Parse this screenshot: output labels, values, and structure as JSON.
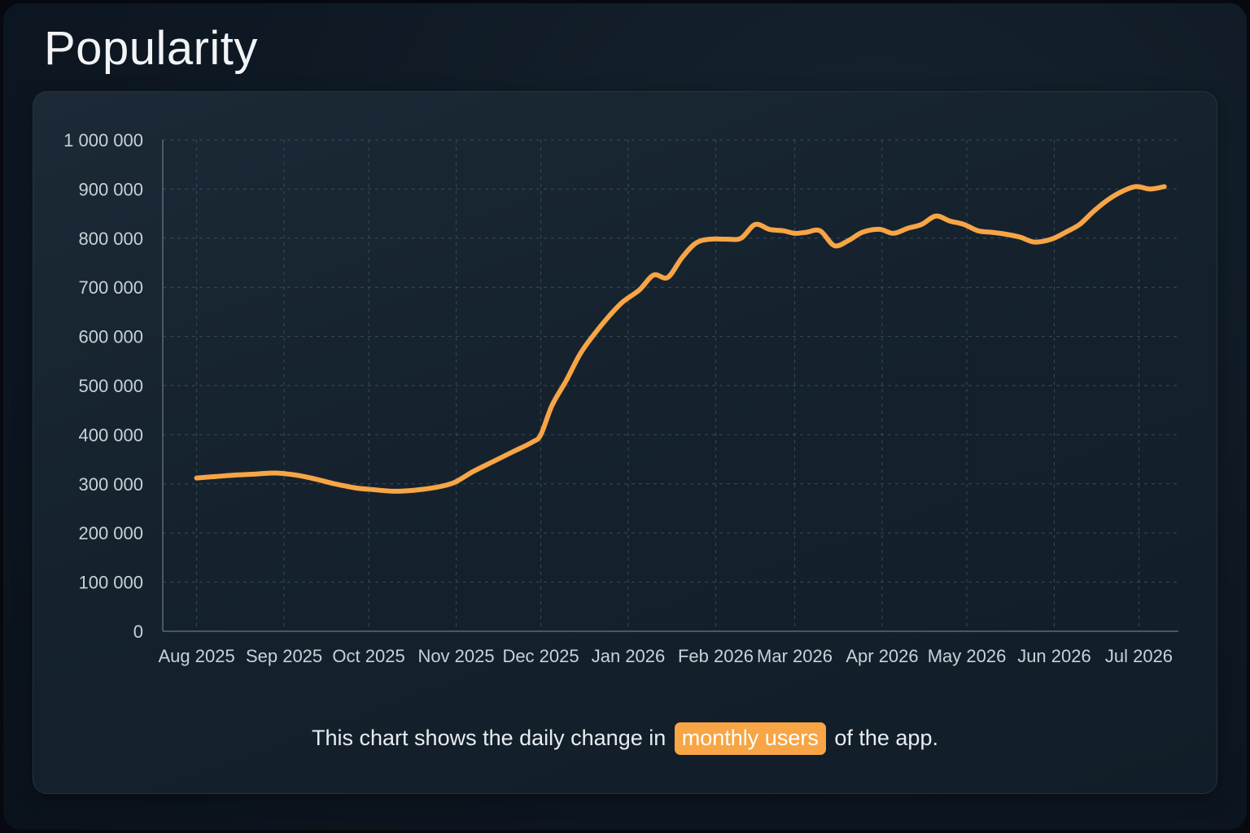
{
  "title": "Popularity",
  "caption": {
    "before": "This chart shows the daily change in",
    "highlight": "monthly users",
    "after": "of the app."
  },
  "colors": {
    "line": "#f7a545",
    "highlight_bg": "#f7a545",
    "grid": "#3a4a58",
    "axis": "#5a6a78"
  },
  "chart_data": {
    "type": "line",
    "title": "",
    "xlabel": "",
    "ylabel": "",
    "ylim": [
      0,
      1000000
    ],
    "y_ticks": [
      0,
      100000,
      200000,
      300000,
      400000,
      500000,
      600000,
      700000,
      800000,
      900000,
      1000000
    ],
    "y_tick_labels": [
      "0",
      "100 000",
      "200 000",
      "300 000",
      "400 000",
      "500 000",
      "600 000",
      "700 000",
      "800 000",
      "900 000",
      "1 000 000"
    ],
    "x_range": [
      "2025-07-20",
      "2026-07-15"
    ],
    "x_ticks": [
      "2025-08-01",
      "2025-09-01",
      "2025-10-01",
      "2025-11-01",
      "2025-12-01",
      "2026-01-01",
      "2026-02-01",
      "2026-03-01",
      "2026-04-01",
      "2026-05-01",
      "2026-06-01",
      "2026-07-01"
    ],
    "x_tick_labels": [
      "Aug 2025",
      "Sep 2025",
      "Oct 2025",
      "Nov 2025",
      "Dec 2025",
      "Jan 2026",
      "Feb 2026",
      "Mar 2026",
      "Apr 2026",
      "May 2026",
      "Jun 2026",
      "Jul 2026"
    ],
    "grid": true,
    "legend": "none",
    "series": [
      {
        "x": [
          "2025-08-01",
          "2025-08-08",
          "2025-08-15",
          "2025-08-22",
          "2025-08-29",
          "2025-09-05",
          "2025-09-12",
          "2025-09-19",
          "2025-09-26",
          "2025-10-03",
          "2025-10-10",
          "2025-10-17",
          "2025-10-24",
          "2025-10-31",
          "2025-11-07",
          "2025-11-14",
          "2025-11-21",
          "2025-11-28",
          "2025-12-01",
          "2025-12-05",
          "2025-12-10",
          "2025-12-15",
          "2025-12-20",
          "2025-12-25",
          "2025-12-30",
          "2026-01-05",
          "2026-01-10",
          "2026-01-15",
          "2026-01-20",
          "2026-01-25",
          "2026-01-30",
          "2026-02-05",
          "2026-02-10",
          "2026-02-15",
          "2026-02-20",
          "2026-02-25",
          "2026-03-01",
          "2026-03-05",
          "2026-03-10",
          "2026-03-15",
          "2026-03-20",
          "2026-03-25",
          "2026-03-31",
          "2026-04-05",
          "2026-04-10",
          "2026-04-15",
          "2026-04-20",
          "2026-04-25",
          "2026-04-30",
          "2026-05-05",
          "2026-05-10",
          "2026-05-15",
          "2026-05-20",
          "2026-05-25",
          "2026-05-31",
          "2026-06-05",
          "2026-06-10",
          "2026-06-15",
          "2026-06-20",
          "2026-06-25",
          "2026-06-30",
          "2026-07-05",
          "2026-07-10"
        ],
        "y": [
          312000,
          315000,
          318000,
          320000,
          322000,
          318000,
          310000,
          300000,
          292000,
          288000,
          285000,
          287000,
          292000,
          302000,
          325000,
          345000,
          365000,
          385000,
          400000,
          460000,
          510000,
          565000,
          605000,
          640000,
          670000,
          695000,
          725000,
          720000,
          760000,
          790000,
          798000,
          798000,
          800000,
          828000,
          818000,
          815000,
          810000,
          812000,
          815000,
          785000,
          795000,
          812000,
          818000,
          810000,
          820000,
          828000,
          845000,
          835000,
          828000,
          815000,
          812000,
          808000,
          802000,
          792000,
          798000,
          812000,
          828000,
          855000,
          878000,
          895000,
          905000,
          900000,
          905000
        ]
      }
    ]
  }
}
